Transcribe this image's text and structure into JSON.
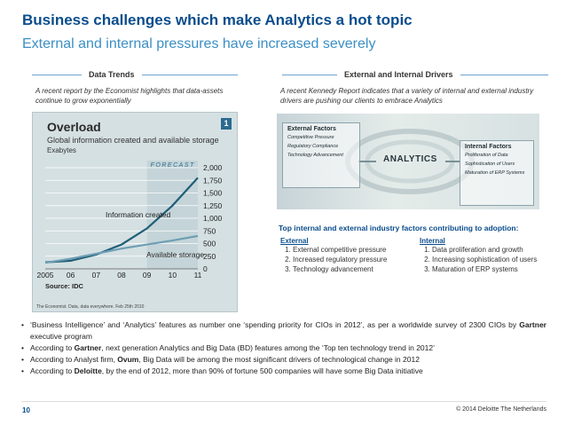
{
  "header": {
    "title": "Business challenges which make Analytics a hot topic",
    "subtitle": "External and internal pressures have increased severely"
  },
  "left": {
    "section_title": "Data Trends",
    "intro": "A recent report by the Economist highlights that data-assets continue to grow exponentially",
    "chart": {
      "badge": "1",
      "heading": "Overload",
      "subheading": "Global information created and available storage",
      "unit": "Exabytes",
      "forecast_label": "FORECAST",
      "series_labels": [
        "Information created",
        "Available storage"
      ],
      "source": "Source: IDC",
      "credit": "The Economist. Data, data everywhere. Feb 25th 2010"
    }
  },
  "right": {
    "section_title": "External and Internal Drivers",
    "intro": "A recent Kennedy Report indicates that a variety of internal and external industry drivers are pushing our clients to embrace Analytics",
    "image": {
      "external_title": "External Factors",
      "external_items": [
        "Competitive Pressure",
        "Regulatory Compliance",
        "Technology Advancement"
      ],
      "center": "ANALYTICS",
      "internal_title": "Internal Factors",
      "internal_items": [
        "Proliferation of Data",
        "Sophistication of Users",
        "Maturation of ERP Systems"
      ]
    },
    "factors_heading": "Top internal and external industry factors contributing to adoption:",
    "external": {
      "label": "External",
      "items": [
        "External competitive pressure",
        "Increased regulatory pressure",
        "Technology advancement"
      ]
    },
    "internal": {
      "label": "Internal",
      "items": [
        "Data proliferation and growth",
        "Increasing sophistication of users",
        "Maturation of ERP systems"
      ]
    }
  },
  "bullets": [
    {
      "pre": "‘Business Intelligence’ and ‘Analytics’ features as number one ‘spending priority for CIOs in 2012’, as per a worldwide survey of 2300 CIOs by ",
      "bold": "Gartner",
      "post": " executive program"
    },
    {
      "pre": "According to ",
      "bold": "Gartner",
      "post": ", next generation Analytics and Big Data (BD) features among the ‘Top ten technology trend in 2012’"
    },
    {
      "pre": "According to Analyst firm, ",
      "bold": "Ovum",
      "post": ", Big Data will be among the most significant drivers of technological change in 2012"
    },
    {
      "pre": "According to ",
      "bold": "Deloitte",
      "post": ", by the end of 2012, more than 90% of fortune 500 companies will have some Big Data initiative"
    }
  ],
  "footer": {
    "page_number": "10",
    "copyright": "© 2014 Deloitte The Netherlands"
  },
  "chart_data": {
    "type": "line",
    "title": "Overload",
    "subtitle": "Global information created and available storage",
    "ylabel": "Exabytes",
    "x": [
      "2005",
      "06",
      "07",
      "08",
      "09",
      "10",
      "11"
    ],
    "y_ticks": [
      0,
      250,
      500,
      750,
      1000,
      1250,
      1500,
      1750,
      2000
    ],
    "ylim": [
      0,
      2000
    ],
    "forecast_from": "09",
    "series": [
      {
        "name": "Information created",
        "values": [
          130,
          160,
          280,
          480,
          800,
          1250,
          1800
        ]
      },
      {
        "name": "Available storage",
        "values": [
          120,
          200,
          300,
          400,
          480,
          560,
          650
        ]
      }
    ],
    "colors": {
      "created": "#1f5e78",
      "storage": "#6d9eb3",
      "forecast_band": "#b7cacf"
    }
  }
}
